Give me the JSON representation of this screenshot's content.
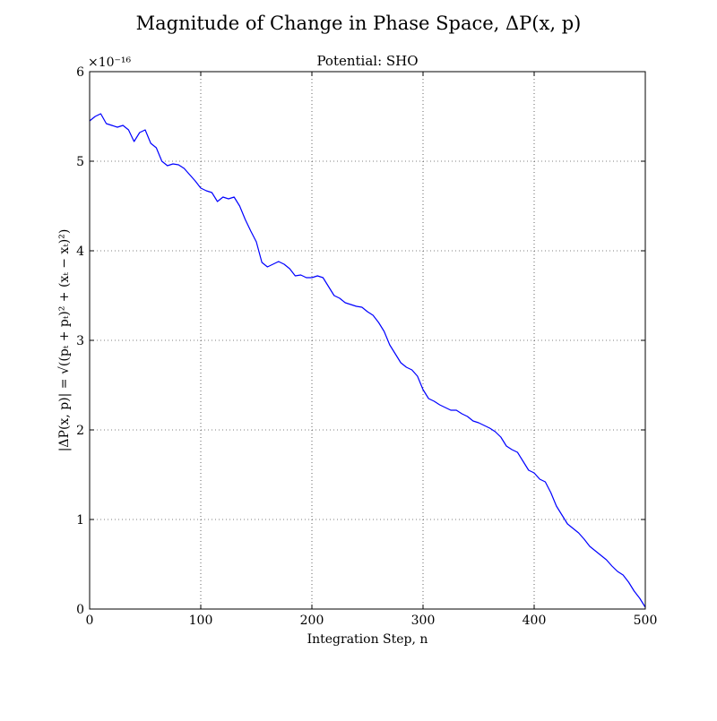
{
  "figure": {
    "suptitle": "Magnitude of Change in Phase Space, ΔP(x, p)"
  },
  "chart_data": {
    "type": "line",
    "title": "Potential: SHO",
    "xlabel": "Integration Step, n",
    "ylabel": "|ΔP(x, p)| = √((pₜ + pₜ)² + (xₜ − xₜ)²)",
    "y_multiplier": "×10⁻¹⁶",
    "xlim": [
      0,
      500
    ],
    "ylim": [
      0,
      6
    ],
    "grid": true,
    "xticks": [
      0,
      100,
      200,
      300,
      400,
      500
    ],
    "yticks": [
      0,
      1,
      2,
      3,
      4,
      5,
      6
    ],
    "x_tick_labels": [
      "0",
      "100",
      "200",
      "300",
      "400",
      "500"
    ],
    "y_tick_labels": [
      "0",
      "1",
      "2",
      "3",
      "4",
      "5",
      "6"
    ],
    "series": [
      {
        "color": "#0000ff",
        "x": [
          0,
          5,
          10,
          15,
          20,
          25,
          30,
          35,
          40,
          45,
          50,
          55,
          60,
          65,
          70,
          75,
          80,
          85,
          90,
          95,
          100,
          105,
          110,
          115,
          120,
          125,
          130,
          135,
          140,
          145,
          150,
          155,
          160,
          165,
          170,
          175,
          180,
          185,
          190,
          195,
          200,
          205,
          210,
          215,
          220,
          225,
          230,
          235,
          240,
          245,
          250,
          255,
          260,
          265,
          270,
          275,
          280,
          285,
          290,
          295,
          300,
          305,
          310,
          315,
          320,
          325,
          330,
          335,
          340,
          345,
          350,
          355,
          360,
          365,
          370,
          375,
          380,
          385,
          390,
          395,
          400,
          405,
          410,
          415,
          420,
          425,
          430,
          435,
          440,
          445,
          450,
          455,
          460,
          465,
          470,
          475,
          480,
          485,
          490,
          495,
          500
        ],
        "values": [
          5.45,
          5.5,
          5.53,
          5.42,
          5.4,
          5.38,
          5.4,
          5.35,
          5.22,
          5.32,
          5.35,
          5.2,
          5.15,
          5.0,
          4.95,
          4.97,
          4.96,
          4.92,
          4.85,
          4.78,
          4.7,
          4.67,
          4.65,
          4.55,
          4.6,
          4.58,
          4.6,
          4.5,
          4.35,
          4.22,
          4.1,
          3.87,
          3.82,
          3.85,
          3.88,
          3.85,
          3.8,
          3.72,
          3.73,
          3.7,
          3.7,
          3.72,
          3.7,
          3.6,
          3.5,
          3.47,
          3.42,
          3.4,
          3.38,
          3.37,
          3.32,
          3.28,
          3.2,
          3.1,
          2.95,
          2.85,
          2.75,
          2.7,
          2.67,
          2.6,
          2.45,
          2.35,
          2.32,
          2.28,
          2.25,
          2.22,
          2.22,
          2.18,
          2.15,
          2.1,
          2.08,
          2.05,
          2.02,
          1.98,
          1.92,
          1.82,
          1.78,
          1.75,
          1.65,
          1.55,
          1.52,
          1.45,
          1.42,
          1.3,
          1.15,
          1.05,
          0.95,
          0.9,
          0.85,
          0.78,
          0.7,
          0.65,
          0.6,
          0.55,
          0.48,
          0.42,
          0.38,
          0.3,
          0.2,
          0.12,
          0.02
        ]
      }
    ]
  }
}
